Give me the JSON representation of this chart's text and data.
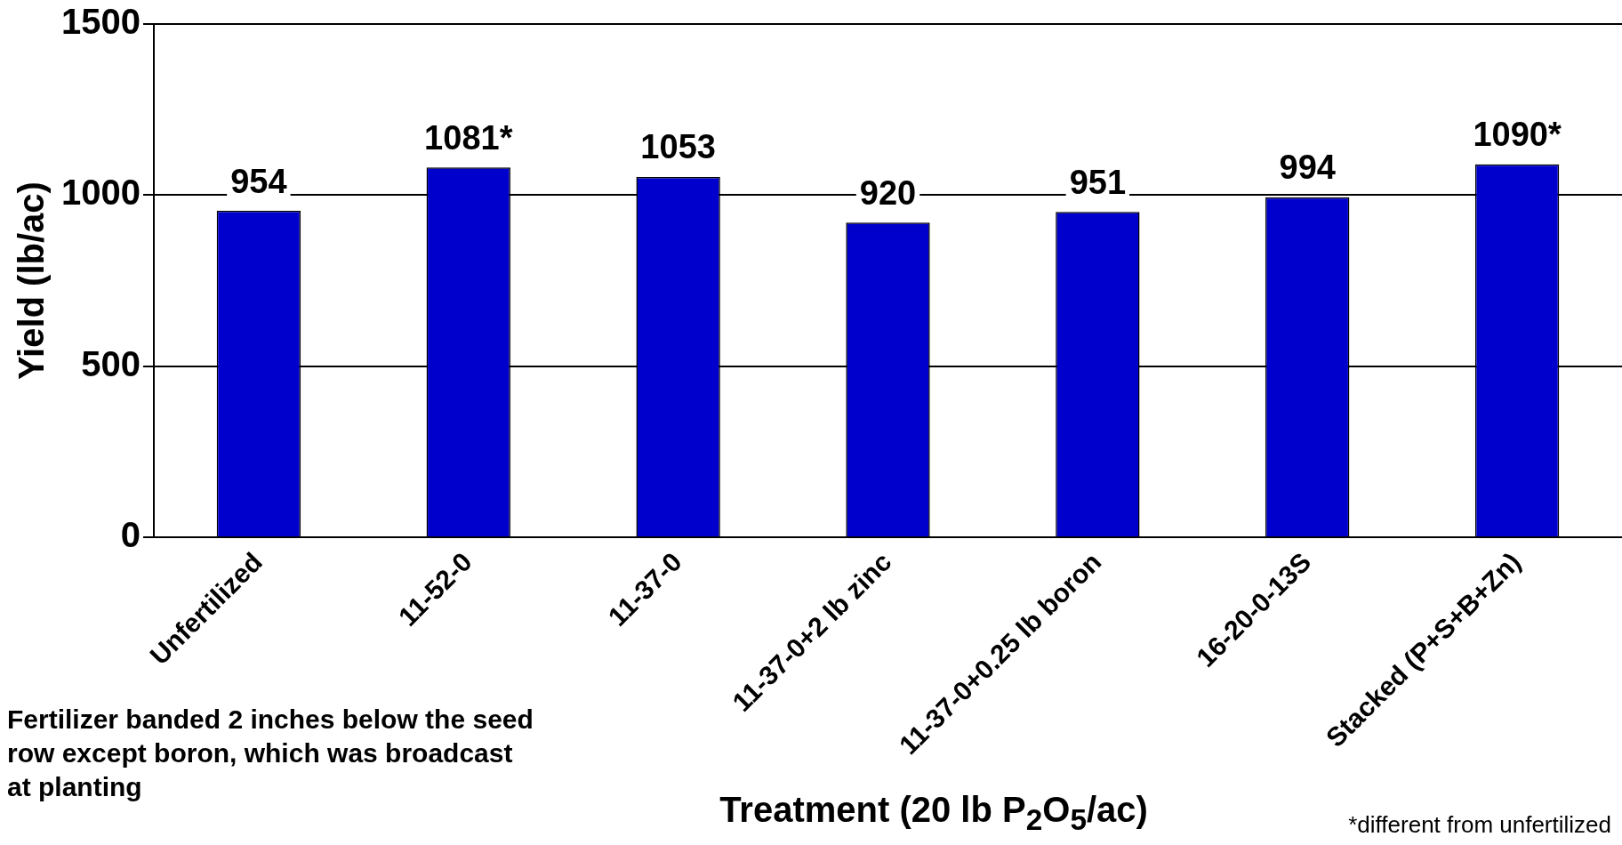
{
  "chart_data": {
    "type": "bar",
    "categories": [
      "Unfertilized",
      "11-52-0",
      "11-37-0",
      "11-37-0+2 lb zinc",
      "11-37-0+0.25 lb boron",
      "16-20-0-13S",
      "Stacked (P+S+B+Zn)"
    ],
    "values": [
      954,
      1081,
      1053,
      920,
      951,
      994,
      1090
    ],
    "value_labels": [
      "954",
      "1081*",
      "1053",
      "920",
      "951",
      "994",
      "1090*"
    ],
    "color": "#0000cc",
    "xlabel": "Treatment (20 lb P$_{2}$O$_{5}$/ac)",
    "ylabel": "Yield (lb/ac)",
    "ylim": [
      0,
      1500
    ],
    "yticks": [
      0,
      500,
      1000,
      1500
    ],
    "grid": "y",
    "annotations": [
      "Fertilizer banded 2 inches below the seed row except boron, which was broadcast at planting",
      "*different from unfertilized"
    ]
  }
}
